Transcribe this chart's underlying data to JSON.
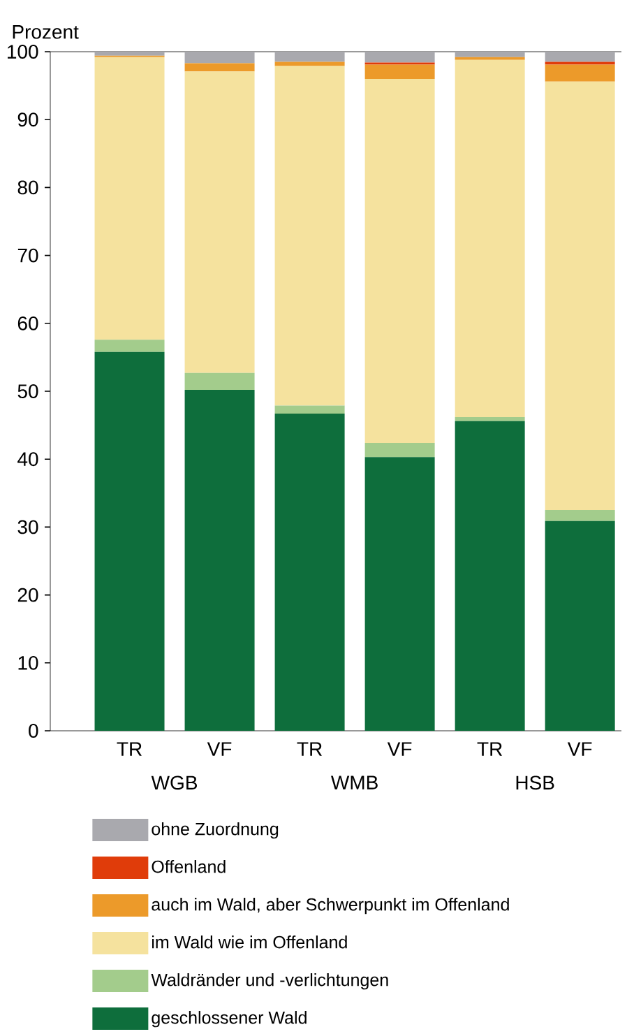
{
  "chart_data": {
    "type": "bar",
    "stacked": true,
    "ylabel": "Prozent",
    "categories": [
      "TR",
      "VF",
      "TR",
      "VF",
      "TR",
      "VF"
    ],
    "annotations": [
      "WGB",
      "WMB",
      "HSB"
    ],
    "ylim": [
      0,
      100
    ],
    "yticks": [
      0,
      10,
      20,
      30,
      40,
      50,
      60,
      70,
      80,
      90,
      100
    ],
    "legend": "bottom",
    "series": [
      {
        "name": "geschlossener Wald",
        "color": "#0e6e3c",
        "values": [
          55.8,
          50.2,
          46.7,
          40.3,
          45.6,
          30.9
        ]
      },
      {
        "name": "Waldränder und -verlichtungen",
        "color": "#a3cc8c",
        "values": [
          1.8,
          2.5,
          1.2,
          2.1,
          0.6,
          1.6
        ]
      },
      {
        "name": "im Wald wie im Offenland",
        "color": "#f5e29e",
        "values": [
          41.6,
          44.4,
          50.0,
          53.6,
          52.6,
          63.1
        ]
      },
      {
        "name": "auch im Wald, aber Schwerpunkt im Offenland",
        "color": "#ec9a2a",
        "values": [
          0.2,
          1.2,
          0.6,
          2.1,
          0.4,
          2.5
        ]
      },
      {
        "name": "Offenland",
        "color": "#e03c0a",
        "values": [
          0,
          0,
          0,
          0.3,
          0,
          0.4
        ]
      },
      {
        "name": "ohne Zuordnung",
        "color": "#a9a9ae",
        "values": [
          0.6,
          1.7,
          1.5,
          1.6,
          0.8,
          1.5
        ]
      }
    ]
  }
}
